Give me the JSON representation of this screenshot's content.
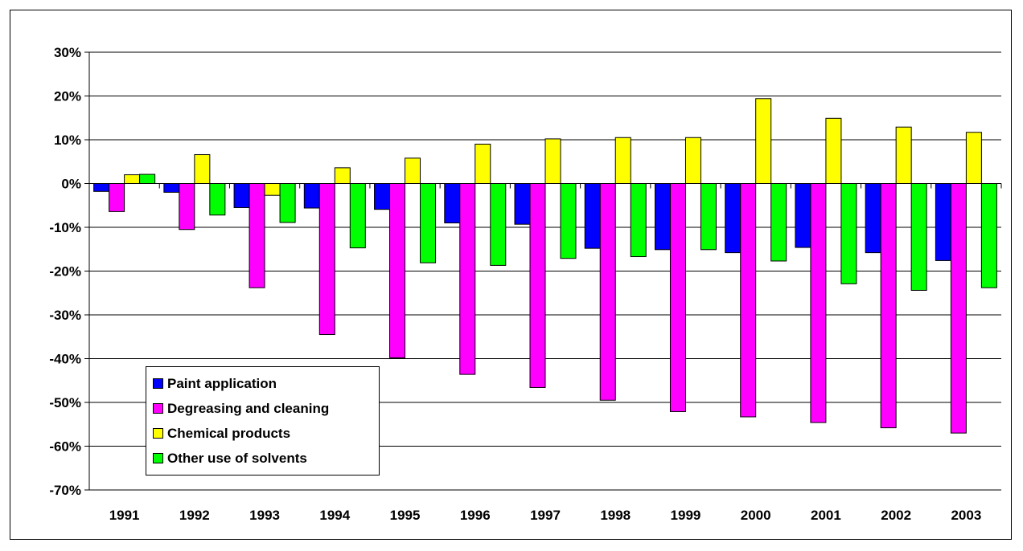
{
  "chart_data": {
    "type": "bar",
    "title": "",
    "xlabel": "",
    "ylabel": "",
    "categories": [
      "1991",
      "1992",
      "1993",
      "1994",
      "1995",
      "1996",
      "1997",
      "1998",
      "1999",
      "2000",
      "2001",
      "2002",
      "2003"
    ],
    "series": [
      {
        "name": "Paint application",
        "color": "#0000ff",
        "values": [
          -1.8,
          -2.0,
          -5.5,
          -5.6,
          -5.9,
          -9.0,
          -9.3,
          -14.8,
          -15.1,
          -15.8,
          -14.6,
          -15.8,
          -17.6
        ]
      },
      {
        "name": "Degreasing and cleaning",
        "color": "#ff00ff",
        "values": [
          -6.4,
          -10.5,
          -23.8,
          -34.5,
          -39.8,
          -43.6,
          -46.6,
          -49.5,
          -52.1,
          -53.3,
          -54.6,
          -55.8,
          -57.0
        ]
      },
      {
        "name": "Chemical products",
        "color": "#ffff00",
        "values": [
          2.0,
          6.6,
          -2.7,
          3.6,
          5.8,
          9.0,
          10.2,
          10.5,
          10.5,
          19.4,
          14.9,
          12.9,
          11.7
        ]
      },
      {
        "name": "Other use of solvents",
        "color": "#00ff00",
        "values": [
          2.1,
          -7.2,
          -8.9,
          -14.7,
          -18.1,
          -18.7,
          -17.1,
          -16.7,
          -15.1,
          -17.7,
          -22.9,
          -24.4,
          -23.8
        ]
      }
    ],
    "ylim": [
      -70,
      30
    ],
    "yticks": [
      -70,
      -60,
      -50,
      -40,
      -30,
      -20,
      -10,
      0,
      10,
      20,
      30
    ],
    "ytick_suffix": "%",
    "grid": true,
    "legend_position": "bottom-left"
  }
}
